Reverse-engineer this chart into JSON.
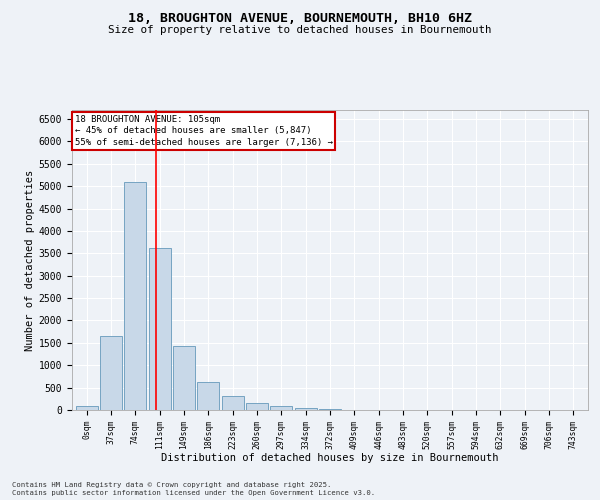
{
  "title": "18, BROUGHTON AVENUE, BOURNEMOUTH, BH10 6HZ",
  "subtitle": "Size of property relative to detached houses in Bournemouth",
  "xlabel": "Distribution of detached houses by size in Bournemouth",
  "ylabel": "Number of detached properties",
  "bar_color": "#c8d8e8",
  "bar_edge_color": "#6699bb",
  "background_color": "#eef2f7",
  "grid_color": "#ffffff",
  "categories": [
    "0sqm",
    "37sqm",
    "74sqm",
    "111sqm",
    "149sqm",
    "186sqm",
    "223sqm",
    "260sqm",
    "297sqm",
    "334sqm",
    "372sqm",
    "409sqm",
    "446sqm",
    "483sqm",
    "520sqm",
    "557sqm",
    "594sqm",
    "632sqm",
    "669sqm",
    "706sqm",
    "743sqm"
  ],
  "values": [
    80,
    1650,
    5100,
    3620,
    1420,
    620,
    310,
    150,
    90,
    50,
    20,
    10,
    5,
    0,
    0,
    0,
    0,
    0,
    0,
    0,
    0
  ],
  "property_label": "18 BROUGHTON AVENUE: 105sqm",
  "pct_smaller": 45,
  "pct_smaller_n": "5,847",
  "pct_larger": 55,
  "pct_larger_n": "7,136",
  "vline_position": 2.84,
  "annotation_box_color": "#cc0000",
  "ylim": [
    0,
    6700
  ],
  "yticks": [
    0,
    500,
    1000,
    1500,
    2000,
    2500,
    3000,
    3500,
    4000,
    4500,
    5000,
    5500,
    6000,
    6500
  ],
  "footer1": "Contains HM Land Registry data © Crown copyright and database right 2025.",
  "footer2": "Contains public sector information licensed under the Open Government Licence v3.0."
}
